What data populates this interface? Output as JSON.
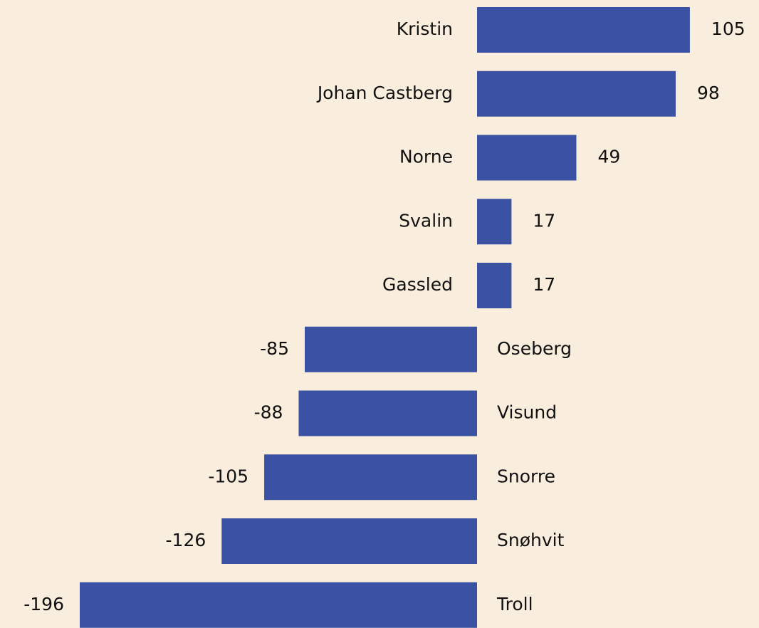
{
  "chart_data": {
    "type": "bar",
    "orientation": "horizontal",
    "categories": [
      "Kristin",
      "Johan Castberg",
      "Norne",
      "Svalin",
      "Gassled",
      "Oseberg",
      "Visund",
      "Snorre",
      "Snøhvit",
      "Troll"
    ],
    "values": [
      105,
      98,
      49,
      17,
      17,
      -85,
      -88,
      -105,
      -126,
      -196
    ],
    "color": "#3b52a4"
  }
}
